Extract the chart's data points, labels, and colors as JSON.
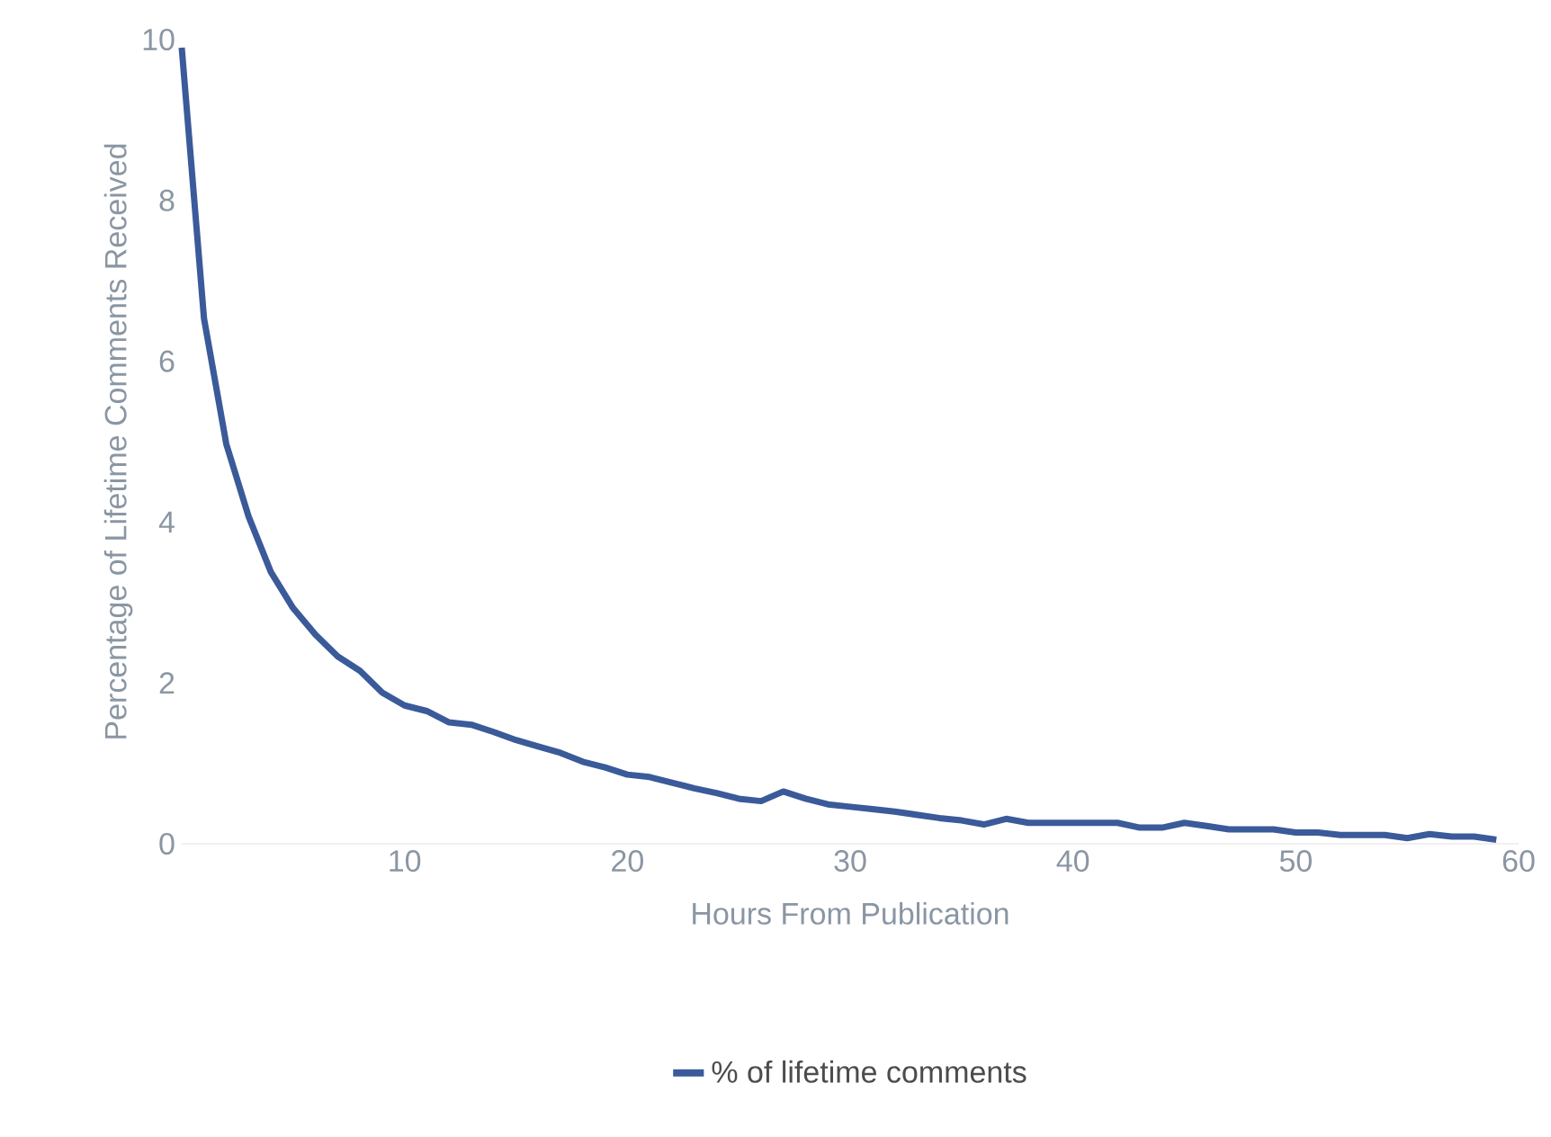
{
  "chart_data": {
    "type": "line",
    "xlabel": "Hours From Publication",
    "ylabel": "Percentage of Lifetime Comments Received",
    "x": [
      0,
      1,
      2,
      3,
      4,
      5,
      6,
      7,
      8,
      9,
      10,
      11,
      12,
      13,
      14,
      15,
      16,
      17,
      18,
      19,
      20,
      21,
      22,
      23,
      24,
      25,
      26,
      27,
      28,
      29,
      30,
      31,
      32,
      33,
      34,
      35,
      36,
      37,
      38,
      39,
      40,
      41,
      42,
      43,
      44,
      45,
      46,
      47,
      48,
      49,
      50,
      51,
      52,
      53,
      54,
      55,
      56,
      57,
      58,
      59
    ],
    "series": [
      {
        "name": "% of lifetime comments",
        "color": "#3a5a9a",
        "values": [
          9.9,
          6.53,
          4.97,
          4.07,
          3.38,
          2.93,
          2.6,
          2.33,
          2.15,
          1.88,
          1.72,
          1.65,
          1.51,
          1.48,
          1.39,
          1.29,
          1.21,
          1.13,
          1.02,
          0.95,
          0.86,
          0.83,
          0.76,
          0.69,
          0.63,
          0.56,
          0.53,
          0.65,
          0.56,
          0.49,
          0.46,
          0.43,
          0.4,
          0.36,
          0.32,
          0.29,
          0.24,
          0.31,
          0.26,
          0.26,
          0.26,
          0.26,
          0.26,
          0.2,
          0.2,
          0.26,
          0.22,
          0.18,
          0.18,
          0.18,
          0.14,
          0.14,
          0.11,
          0.11,
          0.11,
          0.07,
          0.12,
          0.09,
          0.09,
          0.05
        ]
      }
    ],
    "xlim": [
      0,
      60
    ],
    "ylim": [
      0,
      10
    ],
    "xticks": [
      10,
      20,
      30,
      40,
      50,
      60
    ],
    "yticks": [
      0,
      2,
      4,
      6,
      8,
      10
    ],
    "grid": false,
    "legend": "bottom",
    "marker": "none",
    "line_style": "solid"
  }
}
